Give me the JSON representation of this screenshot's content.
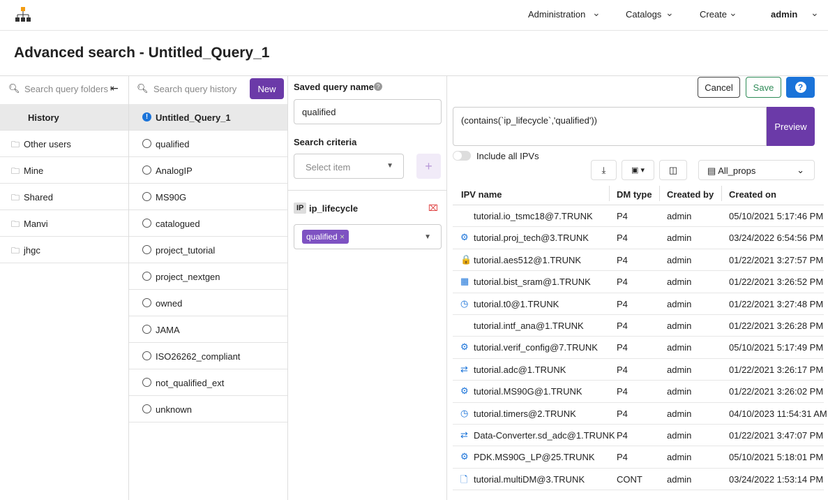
{
  "nav": {
    "items": [
      "Administration",
      "Catalogs",
      "Create",
      "admin"
    ]
  },
  "page_title": "Advanced search - Untitled_Query_1",
  "folders": {
    "search_placeholder": "Search query folders",
    "items": [
      "History",
      "Other users",
      "Mine",
      "Shared",
      "Manvi",
      "jhgc"
    ]
  },
  "history": {
    "search_placeholder": "Search query history",
    "new_button": "New",
    "items": [
      "Untitled_Query_1",
      "qualified",
      "AnalogIP",
      "MS90G",
      "catalogued",
      "project_tutorial",
      "project_nextgen",
      "owned",
      "JAMA",
      "ISO26262_compliant",
      "not_qualified_ext",
      "unknown"
    ]
  },
  "criteria": {
    "saved_query_name_label": "Saved query name",
    "saved_query_name_value": "qualified",
    "search_criteria_label": "Search criteria",
    "select_placeholder": "Select item",
    "filter": {
      "badge": "IP",
      "name": "ip_lifecycle",
      "chip": "qualified"
    }
  },
  "results": {
    "cancel": "Cancel",
    "save": "Save",
    "help": "?",
    "query": "(contains(`ip_lifecycle`,'qualified'))",
    "preview": "Preview",
    "include_all": "Include all IPVs",
    "view": "All_props",
    "table": {
      "columns": [
        "IPV name",
        "DM type",
        "Created by",
        "Created on"
      ],
      "rows": [
        [
          "tutorial.io_tsmc18@7.TRUNK",
          "P4",
          "admin",
          "05/10/2021 5:17:46 PM"
        ],
        [
          "tutorial.proj_tech@3.TRUNK",
          "P4",
          "admin",
          "03/24/2022 6:54:56 PM"
        ],
        [
          "tutorial.aes512@1.TRUNK",
          "P4",
          "admin",
          "01/22/2021 3:27:57 PM"
        ],
        [
          "tutorial.bist_sram@1.TRUNK",
          "P4",
          "admin",
          "01/22/2021 3:26:52 PM"
        ],
        [
          "tutorial.t0@1.TRUNK",
          "P4",
          "admin",
          "01/22/2021 3:27:48 PM"
        ],
        [
          "tutorial.intf_ana@1.TRUNK",
          "P4",
          "admin",
          "01/22/2021 3:26:28 PM"
        ],
        [
          "tutorial.verif_config@7.TRUNK",
          "P4",
          "admin",
          "05/10/2021 5:17:49 PM"
        ],
        [
          "tutorial.adc@1.TRUNK",
          "P4",
          "admin",
          "01/22/2021 3:26:17 PM"
        ],
        [
          "tutorial.MS90G@1.TRUNK",
          "P4",
          "admin",
          "01/22/2021 3:26:02 PM"
        ],
        [
          "tutorial.timers@2.TRUNK",
          "P4",
          "admin",
          "04/10/2023 11:54:31 AM"
        ],
        [
          "Data-Converter.sd_adc@1.TRUNK",
          "P4",
          "admin",
          "01/22/2021 3:47:07 PM"
        ],
        [
          "PDK.MS90G_LP@25.TRUNK",
          "P4",
          "admin",
          "05/10/2021 5:18:01 PM"
        ],
        [
          "tutorial.multiDM@3.TRUNK",
          "CONT",
          "admin",
          "03/24/2022 1:53:14 PM"
        ]
      ]
    }
  }
}
